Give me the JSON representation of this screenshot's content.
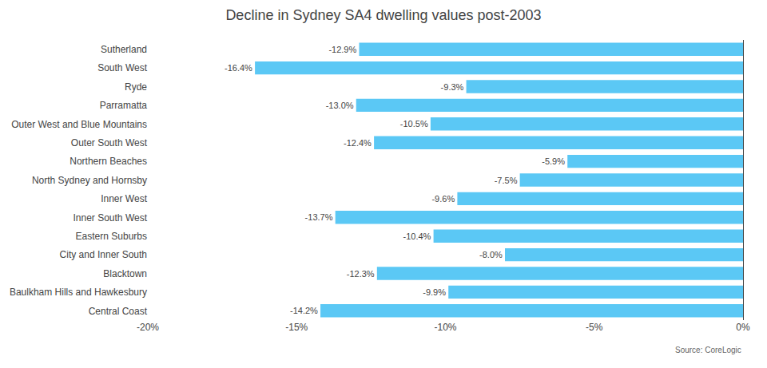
{
  "chart_data": {
    "type": "bar",
    "orientation": "horizontal",
    "title": "Decline in Sydney SA4 dwelling values post-2003",
    "categories": [
      "Central Coast",
      "Baulkham Hills and Hawkesbury",
      "Blacktown",
      "City and Inner South",
      "Eastern Suburbs",
      "Inner South West",
      "Inner West",
      "North Sydney and Hornsby",
      "Northern Beaches",
      "Outer South West",
      "Outer West and Blue Mountains",
      "Parramatta",
      "Ryde",
      "South West",
      "Sutherland"
    ],
    "values": [
      -14.2,
      -9.9,
      -12.3,
      -8.0,
      -10.4,
      -13.7,
      -9.6,
      -7.5,
      -5.9,
      -12.4,
      -10.5,
      -13.0,
      -9.3,
      -16.4,
      -12.9
    ],
    "value_labels": [
      "-14.2%",
      "-9.9%",
      "-12.3%",
      "-8.0%",
      "-10.4%",
      "-13.7%",
      "-9.6%",
      "-7.5%",
      "-5.9%",
      "-12.4%",
      "-10.5%",
      "-13.0%",
      "-9.3%",
      "-16.4%",
      "-12.9%"
    ],
    "data_labels": true,
    "color": "#5bc8f5",
    "xlim": [
      -20,
      0
    ],
    "xticks": [
      {
        "value": -20,
        "label": "-20%"
      },
      {
        "value": -15,
        "label": "-15%"
      },
      {
        "value": -10,
        "label": "-10%"
      },
      {
        "value": -5,
        "label": "-5%"
      },
      {
        "value": 0,
        "label": "0%"
      }
    ],
    "grid": false,
    "annotations": [
      "Source: CoreLogic"
    ]
  }
}
